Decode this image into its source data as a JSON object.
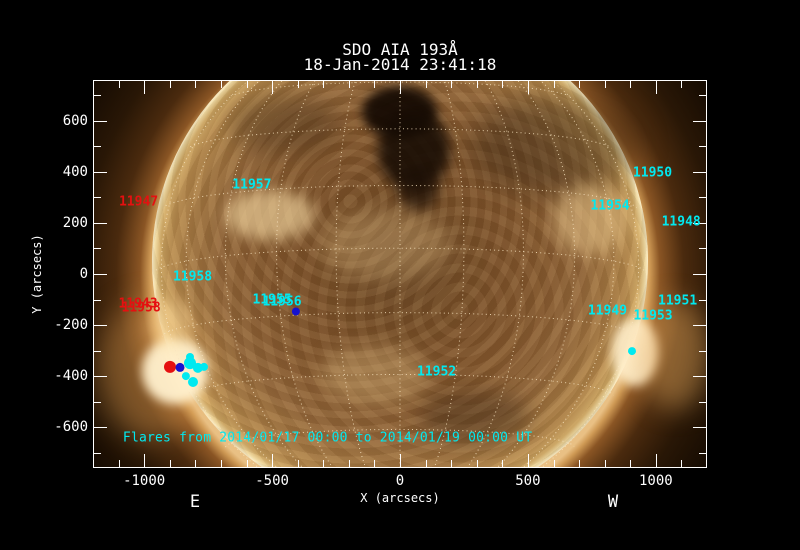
{
  "header": {
    "line1": "SDO AIA 193Å",
    "line2": "18-Jan-2014 23:41:18"
  },
  "axes": {
    "xlabel": "X (arcsecs)",
    "ylabel": "Y (arcsecs)",
    "east": "E",
    "west": "W"
  },
  "colors": {
    "cyan": "#00e9f0",
    "red": "#e51010",
    "blue": "#1512cf",
    "frame": "#ffffff",
    "grid": "#f8e4c0",
    "background": "#000000"
  },
  "chart_data": {
    "type": "scatter",
    "title": "SDO AIA 193Å",
    "timestamp": "18-Jan-2014 23:41:18",
    "description": "Full-disk SDO AIA 193 A solar image with NOAA active-region labels and flare-site markers over a dotted 15-degree heliographic grid",
    "axes": {
      "xlabel": "X (arcsecs)",
      "ylabel": "Y (arcsecs)",
      "xlim": [
        -1200,
        1200
      ],
      "ylim": [
        -760,
        760
      ],
      "xticks": [
        -1000,
        -500,
        0,
        500,
        1000
      ],
      "yticks": [
        -600,
        -400,
        -200,
        0,
        200,
        400,
        600
      ],
      "minor_tick_step": 100,
      "grid": "heliographic 15deg dotted, on-disk only"
    },
    "solar_disk": {
      "radius_arcsec": 965,
      "center": [
        0,
        0
      ]
    },
    "annotations": [
      {
        "label": "11947",
        "x": -1022,
        "y": 282,
        "color": "red"
      },
      {
        "label": "11957",
        "x": -579,
        "y": 349,
        "color": "cyan"
      },
      {
        "label": "11958",
        "x": -811,
        "y": -10,
        "color": "cyan"
      },
      {
        "label": "11943",
        "x": -1024,
        "y": -118,
        "color": "red"
      },
      {
        "label": "11958",
        "x": -1012,
        "y": -134,
        "color": "red"
      },
      {
        "label": "11955",
        "x": -500,
        "y": -102,
        "color": "cyan"
      },
      {
        "label": "11956",
        "x": -461,
        "y": -108,
        "color": "cyan"
      },
      {
        "label": "11950",
        "x": 987,
        "y": 396,
        "color": "cyan"
      },
      {
        "label": "11954",
        "x": 821,
        "y": 266,
        "color": "cyan"
      },
      {
        "label": "11948",
        "x": 1099,
        "y": 204,
        "color": "cyan"
      },
      {
        "label": "11951",
        "x": 1085,
        "y": -106,
        "color": "cyan"
      },
      {
        "label": "11949",
        "x": 811,
        "y": -145,
        "color": "cyan"
      },
      {
        "label": "11953",
        "x": 989,
        "y": -166,
        "color": "cyan"
      },
      {
        "label": "11952",
        "x": 143,
        "y": -382,
        "color": "cyan"
      }
    ],
    "flare_markers": [
      {
        "x": -899,
        "y": -364,
        "r": 6,
        "color": "red"
      },
      {
        "x": -860,
        "y": -366,
        "r": 4.5,
        "color": "blue"
      },
      {
        "x": -821,
        "y": -349,
        "r": 6,
        "color": "cyan"
      },
      {
        "x": -790,
        "y": -368,
        "r": 5,
        "color": "cyan"
      },
      {
        "x": -766,
        "y": -364,
        "r": 4,
        "color": "cyan"
      },
      {
        "x": -837,
        "y": -400,
        "r": 4,
        "color": "cyan"
      },
      {
        "x": -809,
        "y": -423,
        "r": 5,
        "color": "cyan"
      },
      {
        "x": -821,
        "y": -325,
        "r": 4,
        "color": "cyan"
      },
      {
        "x": -407,
        "y": -147,
        "r": 4,
        "color": "blue"
      },
      {
        "x": 907,
        "y": -302,
        "r": 4,
        "color": "cyan"
      }
    ],
    "caption": {
      "text": "Flares from 2014/01/17 00:00 to 2014/01/19 00:00 UT",
      "x": -1083,
      "y": -642,
      "color": "cyan"
    }
  }
}
